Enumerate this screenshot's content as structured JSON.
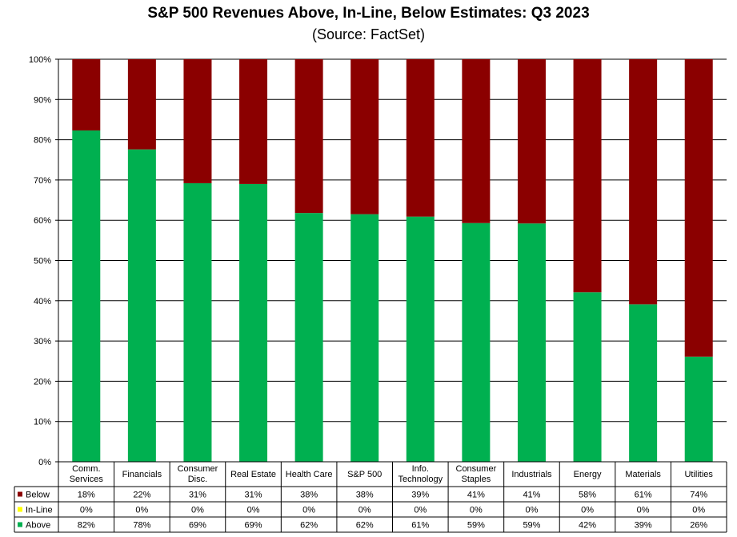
{
  "chart_data": {
    "type": "bar",
    "stacked": true,
    "title": "S&P 500 Revenues Above, In-Line, Below Estimates: Q3 2023",
    "subtitle": "(Source: FactSet)",
    "categories": [
      [
        "Comm.",
        "Services"
      ],
      [
        "Financials"
      ],
      [
        "Consumer",
        "Disc."
      ],
      [
        "Real Estate"
      ],
      [
        "Health Care"
      ],
      [
        "S&P 500"
      ],
      [
        "Info.",
        "Technology"
      ],
      [
        "Consumer",
        "Staples"
      ],
      [
        "Industrials"
      ],
      [
        "Energy"
      ],
      [
        "Materials"
      ],
      [
        "Utilities"
      ]
    ],
    "y_ticks": [
      "0%",
      "10%",
      "20%",
      "30%",
      "40%",
      "50%",
      "60%",
      "70%",
      "80%",
      "90%",
      "100%"
    ],
    "ylim": [
      0,
      100
    ],
    "grid": true,
    "series": [
      {
        "name": "Below",
        "color": "#8B0000",
        "values": [
          18,
          22,
          31,
          31,
          38,
          38,
          39,
          41,
          41,
          58,
          61,
          74
        ],
        "labels": [
          "18%",
          "22%",
          "31%",
          "31%",
          "38%",
          "38%",
          "39%",
          "41%",
          "41%",
          "58%",
          "61%",
          "74%"
        ]
      },
      {
        "name": "In-Line",
        "color": "#FFFF00",
        "values": [
          0,
          0,
          0,
          0,
          0,
          0,
          0,
          0,
          0,
          0,
          0,
          0
        ],
        "labels": [
          "0%",
          "0%",
          "0%",
          "0%",
          "0%",
          "0%",
          "0%",
          "0%",
          "0%",
          "0%",
          "0%",
          "0%"
        ]
      },
      {
        "name": "Above",
        "color": "#00B050",
        "values": [
          82.3,
          77.6,
          69.2,
          69.0,
          61.8,
          61.5,
          60.9,
          59.3,
          59.2,
          42.1,
          39.1,
          26.1
        ],
        "labels": [
          "82%",
          "78%",
          "69%",
          "69%",
          "62%",
          "62%",
          "61%",
          "59%",
          "59%",
          "42%",
          "39%",
          "26%"
        ]
      }
    ],
    "data_table": true
  }
}
